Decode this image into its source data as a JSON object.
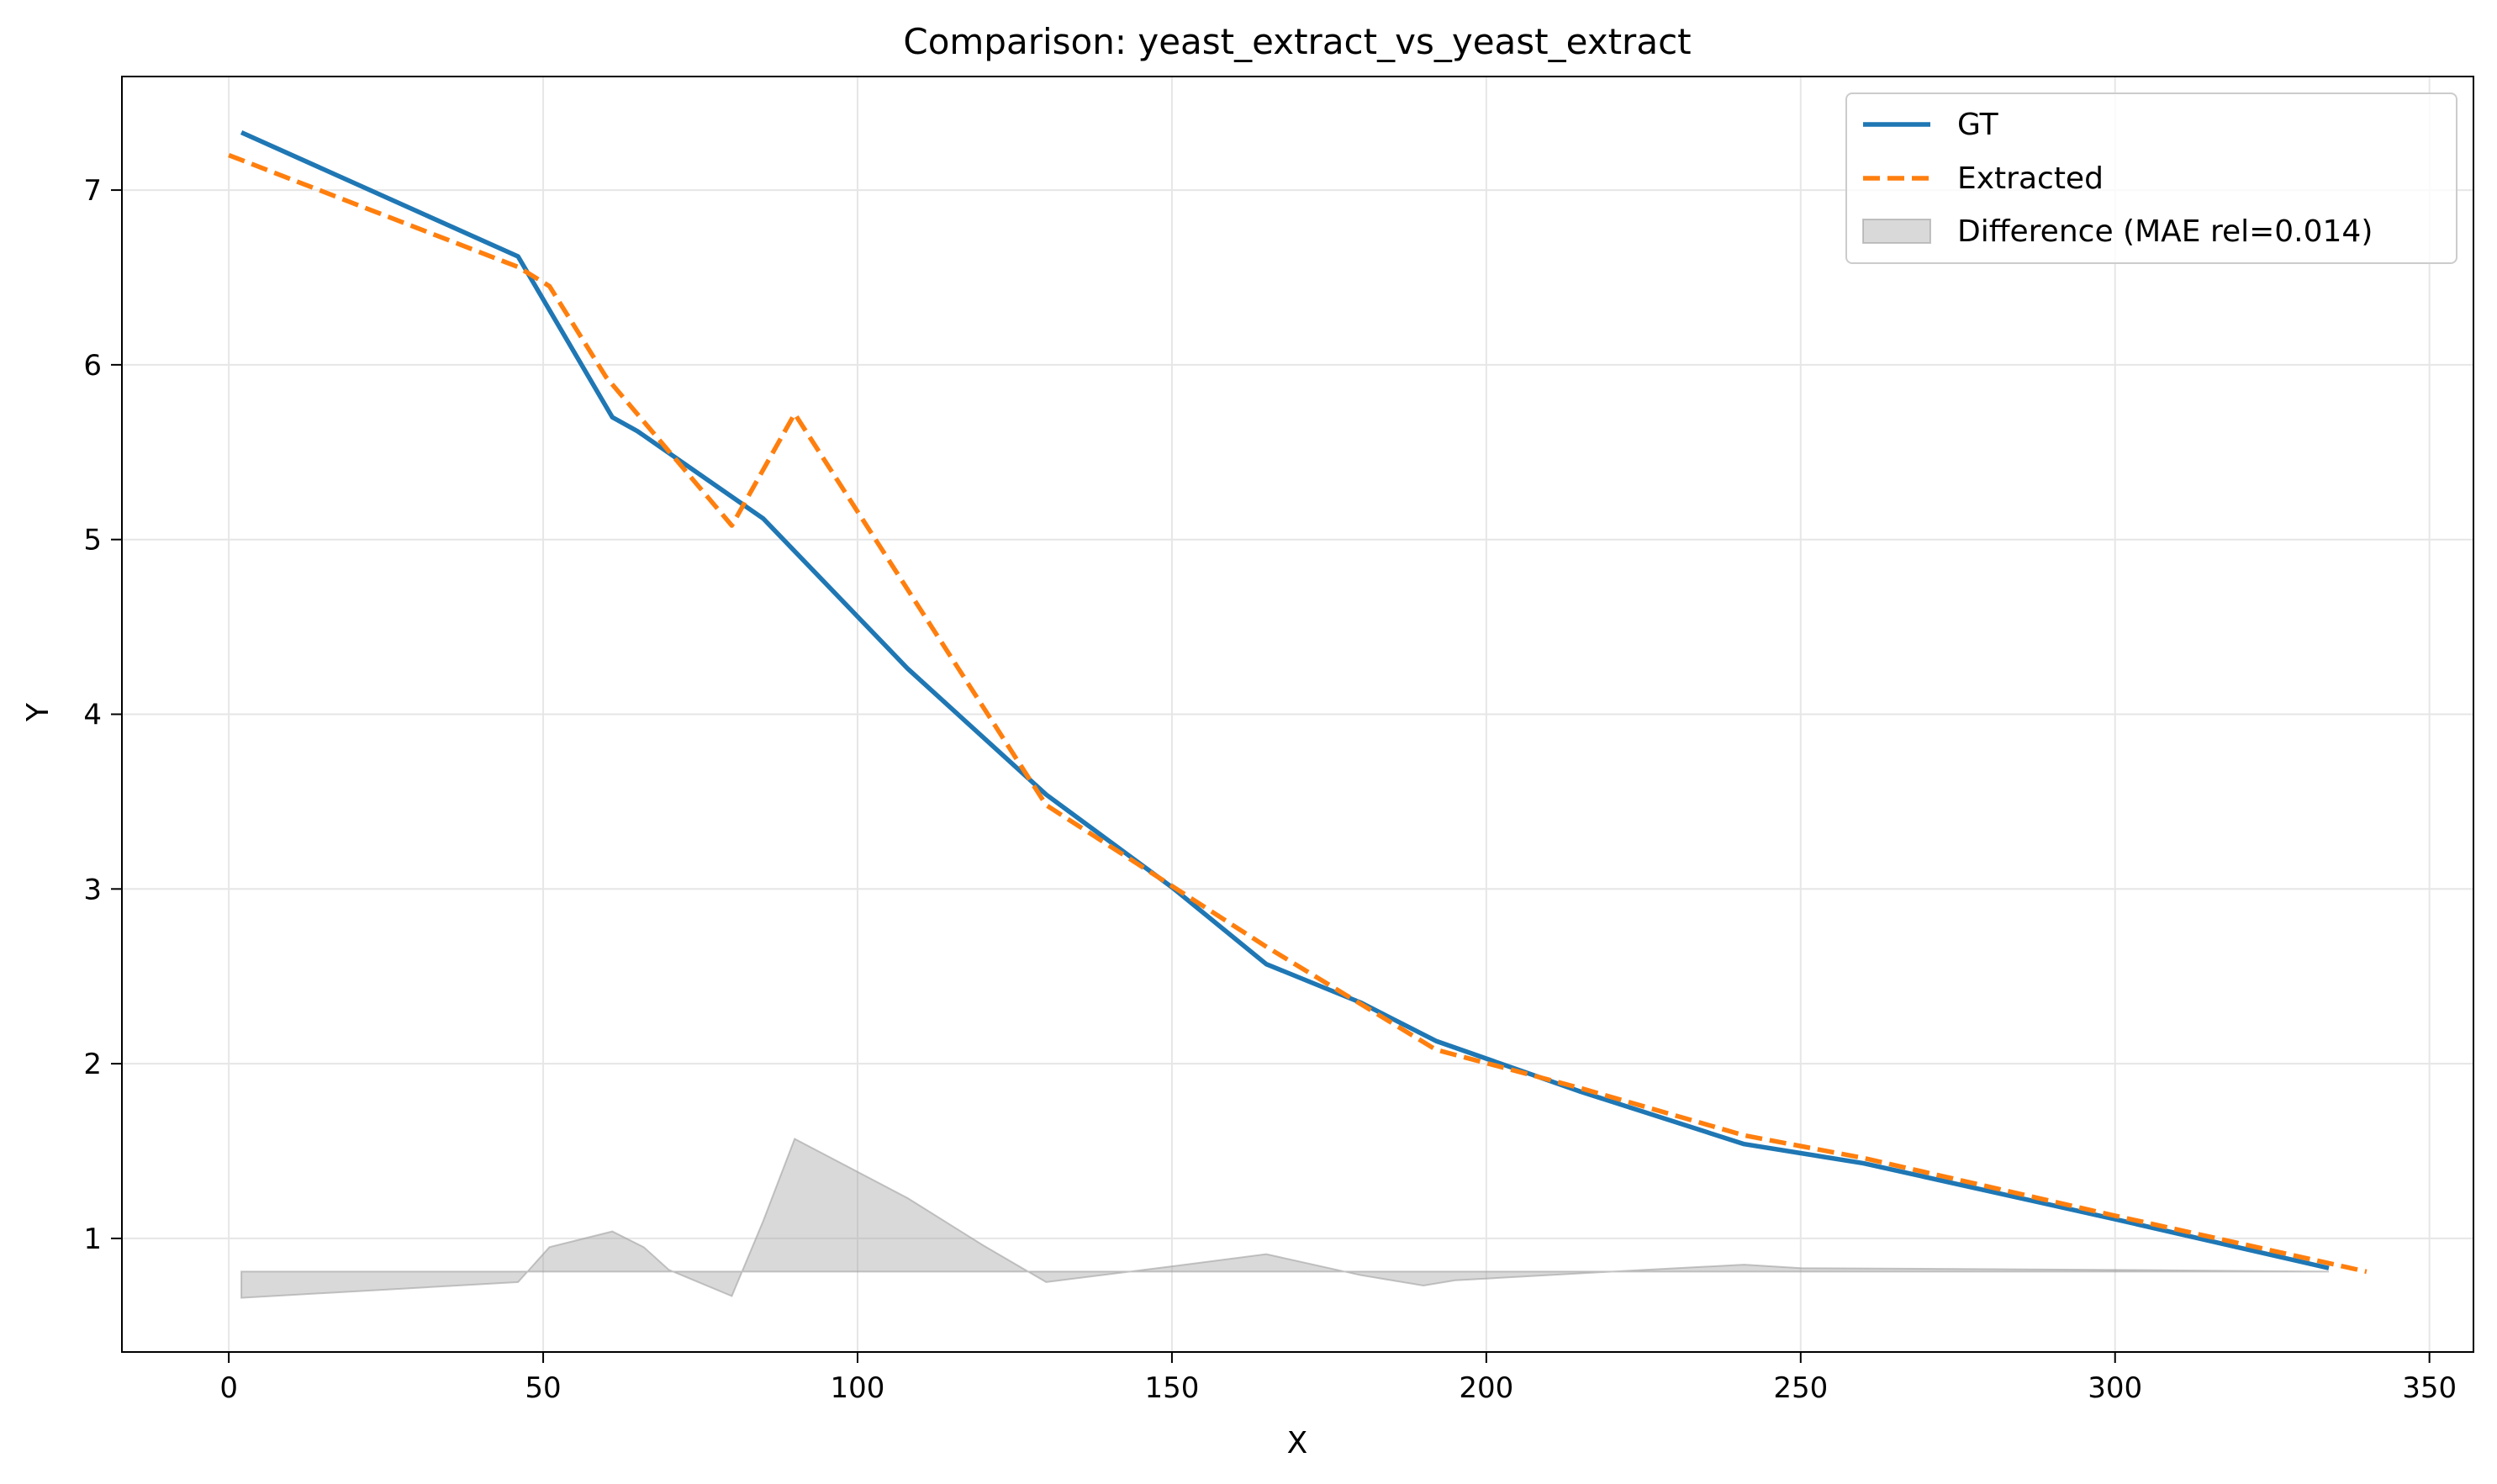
{
  "chart_data": {
    "type": "line",
    "title": "Comparison: yeast_extract_vs_yeast_extract",
    "xlabel": "X",
    "ylabel": "Y",
    "xlim": [
      -17,
      357
    ],
    "ylim": [
      0.35,
      7.65
    ],
    "xticks": [
      0,
      50,
      100,
      150,
      200,
      250,
      300,
      350
    ],
    "yticks": [
      1,
      2,
      3,
      4,
      5,
      6,
      7
    ],
    "grid": true,
    "legend_position": "top-right",
    "series": [
      {
        "name": "GT",
        "color": "#1f77b4",
        "style": "solid",
        "x": [
          2,
          46,
          61,
          65,
          85,
          108,
          130,
          150,
          165,
          180,
          192,
          215,
          241,
          260,
          300,
          334
        ],
        "y": [
          7.33,
          6.62,
          5.7,
          5.62,
          5.12,
          4.26,
          3.54,
          3.01,
          2.57,
          2.35,
          2.13,
          1.84,
          1.54,
          1.43,
          1.11,
          0.83
        ]
      },
      {
        "name": "Extracted",
        "color": "#ff7f0e",
        "style": "dashed",
        "x": [
          0,
          46,
          51,
          60,
          80,
          90,
          110,
          130,
          165,
          192,
          215,
          241,
          260,
          300,
          340
        ],
        "y": [
          7.2,
          6.56,
          6.45,
          5.93,
          5.08,
          5.72,
          4.6,
          3.48,
          2.67,
          2.08,
          1.86,
          1.59,
          1.46,
          1.13,
          0.81
        ]
      },
      {
        "name": "Difference (MAE rel=0.014)",
        "type": "area",
        "color": "#a0a0a0",
        "baseline": 0.81,
        "x": [
          2,
          46,
          51,
          61,
          66,
          70,
          80,
          85,
          90,
          108,
          120,
          130,
          150,
          165,
          180,
          190,
          195,
          220,
          241,
          250,
          300,
          334
        ],
        "y": [
          0.66,
          0.75,
          0.95,
          1.04,
          0.95,
          0.82,
          0.67,
          1.1,
          1.57,
          1.23,
          0.96,
          0.75,
          0.84,
          0.91,
          0.79,
          0.73,
          0.76,
          0.81,
          0.85,
          0.83,
          0.82,
          0.81
        ]
      }
    ]
  }
}
